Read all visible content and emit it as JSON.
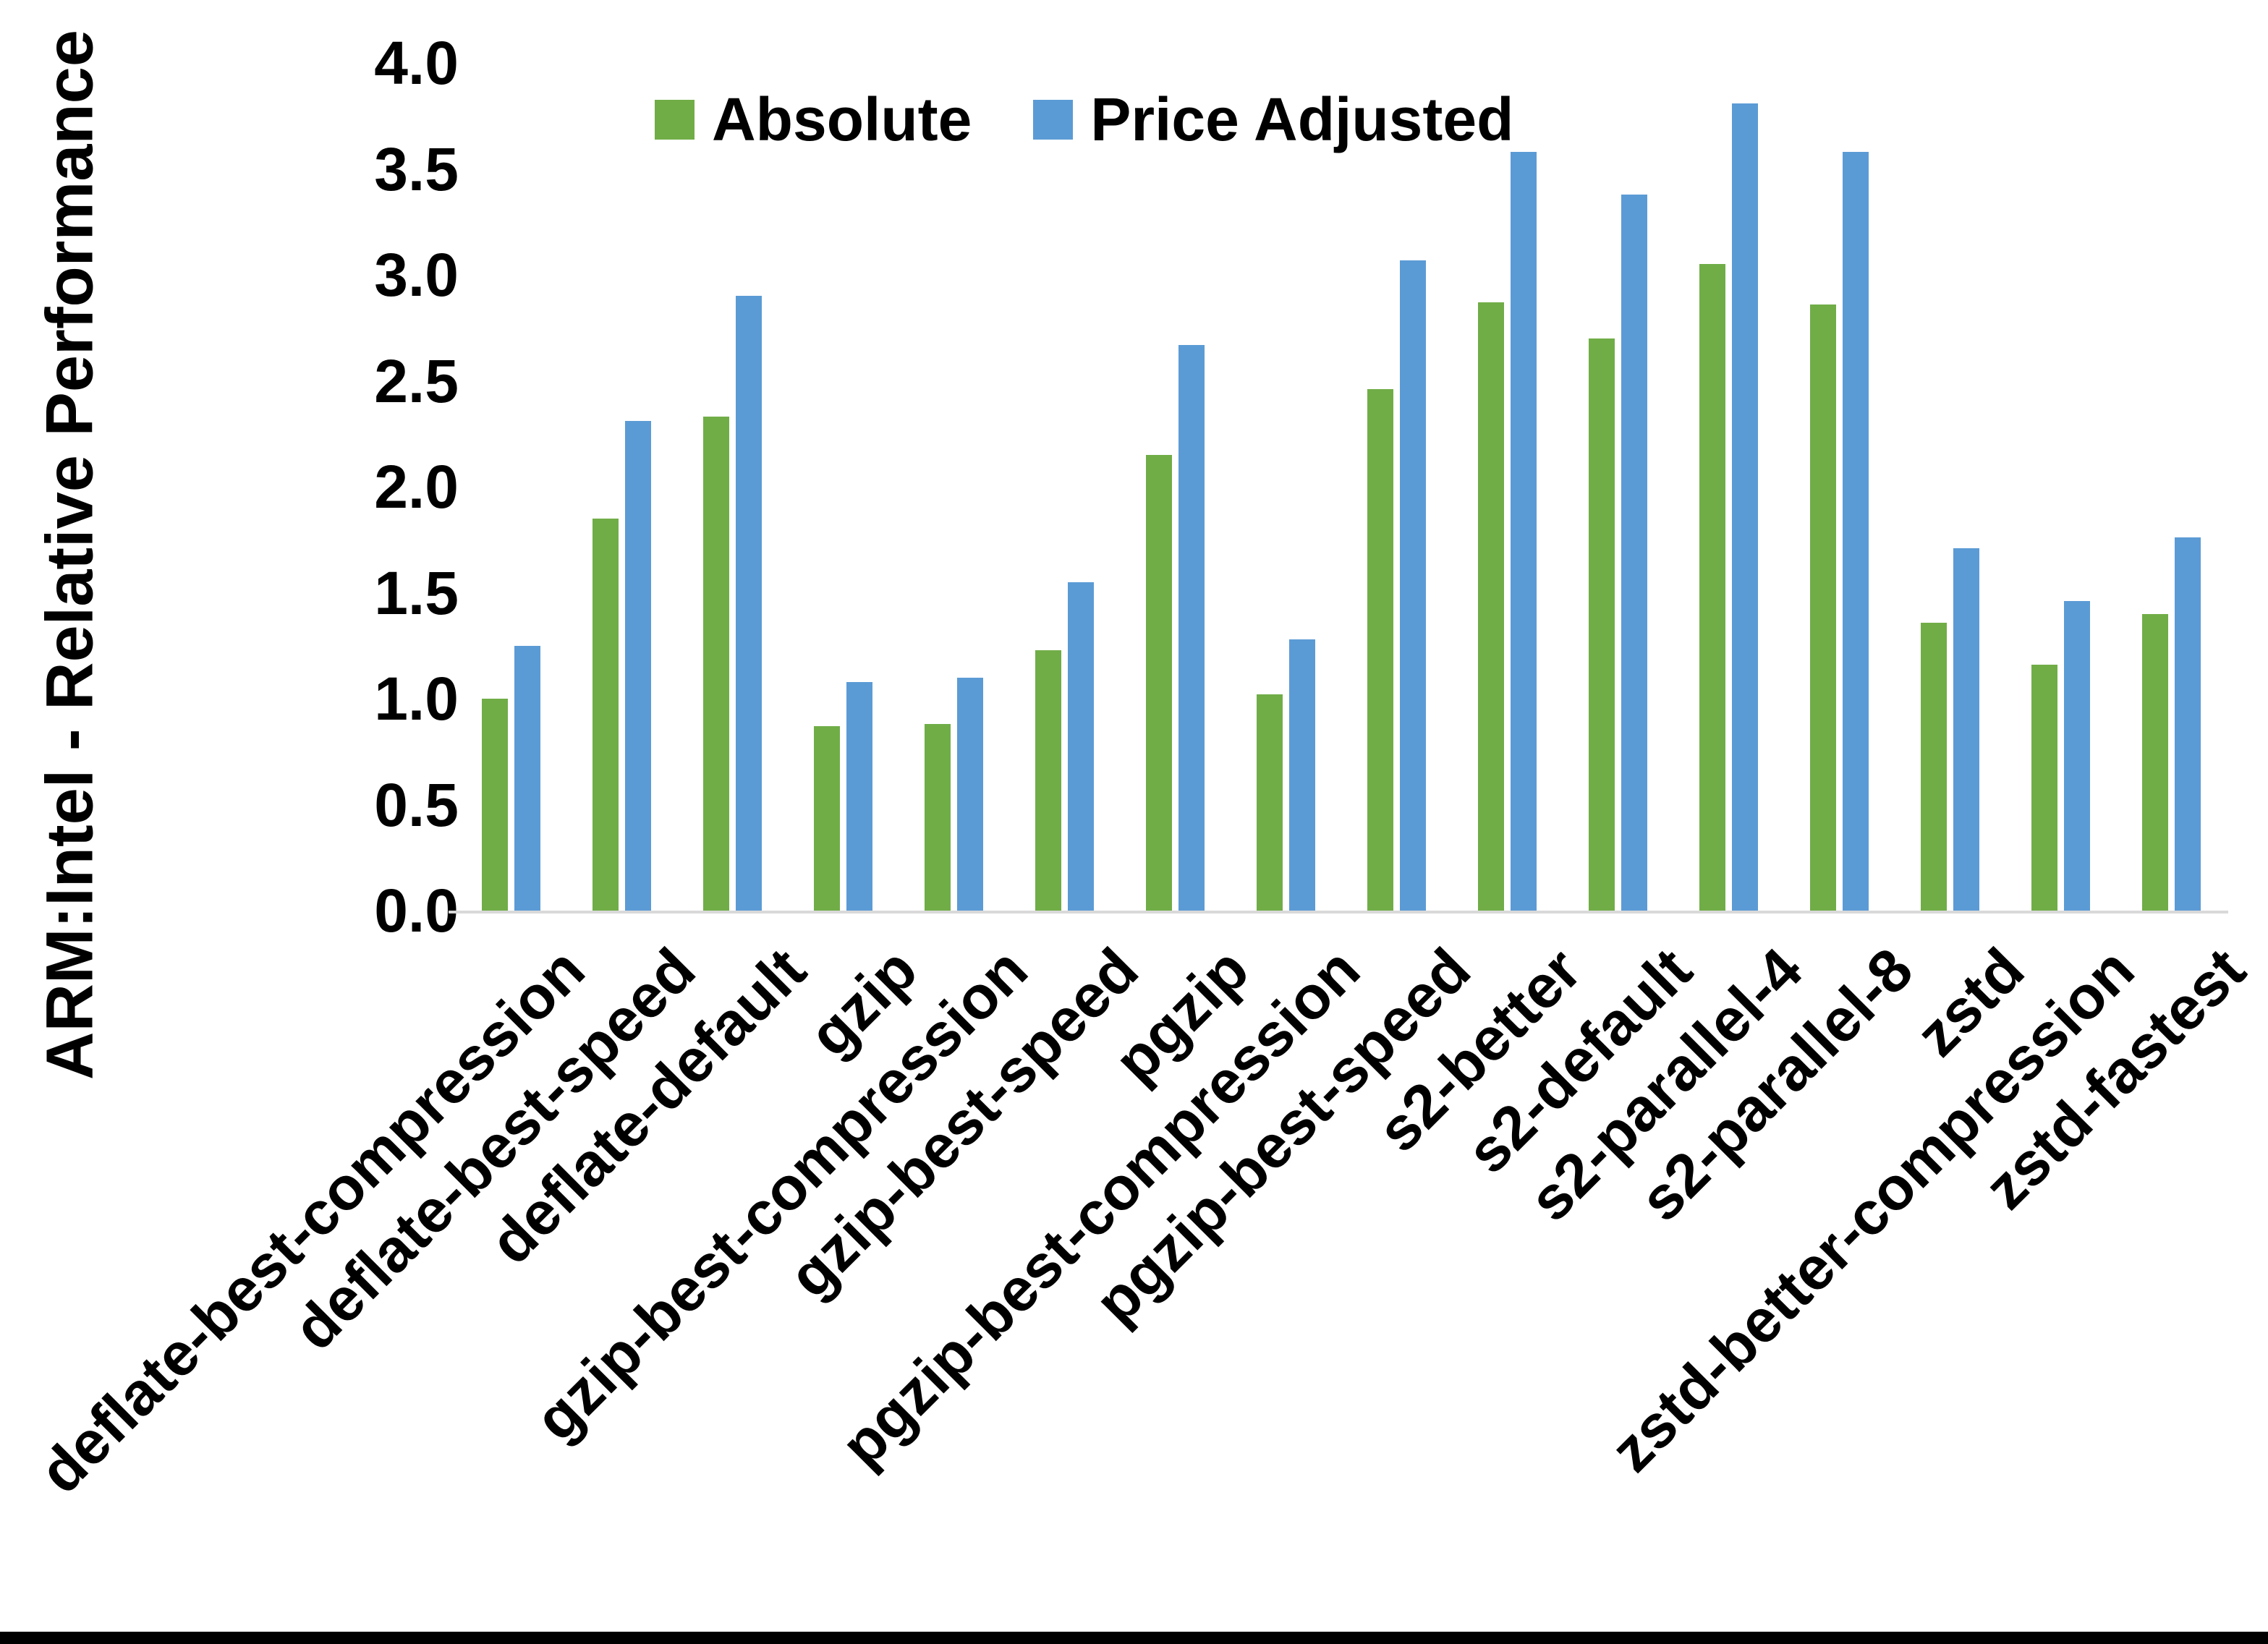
{
  "chart_data": {
    "type": "bar",
    "title": "",
    "xlabel": "",
    "ylabel": "ARM:Intel - Relative Performance",
    "ylim": [
      0,
      4
    ],
    "ytick_labels": [
      "0.0",
      "0.5",
      "1.0",
      "1.5",
      "2.0",
      "2.5",
      "3.0",
      "3.5",
      "4.0"
    ],
    "grid": false,
    "legend_position": "top-center",
    "categories": [
      "deflate-best-compression",
      "deflate-best-speed",
      "deflate-default",
      "gzip",
      "gzip-best-compression",
      "gzip-best-speed",
      "pgzip",
      "pgzip-best-compression",
      "pgzip-best-speed",
      "s2-better",
      "s2-default",
      "s2-parallel-4",
      "s2-parallel-8",
      "zstd",
      "zstd-better-compression",
      "zstd-fastest"
    ],
    "series": [
      {
        "name": "Absolute",
        "color": "#70AD47",
        "values": [
          1.0,
          1.85,
          2.33,
          0.87,
          0.88,
          1.23,
          2.15,
          1.02,
          2.46,
          2.87,
          2.7,
          3.05,
          2.86,
          1.36,
          1.16,
          1.4
        ]
      },
      {
        "name": "Price Adjusted",
        "color": "#5B9BD5",
        "values": [
          1.25,
          2.31,
          2.9,
          1.08,
          1.1,
          1.55,
          2.67,
          1.28,
          3.07,
          3.58,
          3.38,
          3.81,
          3.58,
          1.71,
          1.46,
          1.76
        ]
      }
    ],
    "axis_line_color": "#d9d9d9",
    "bottom_border_color": "#000000"
  }
}
